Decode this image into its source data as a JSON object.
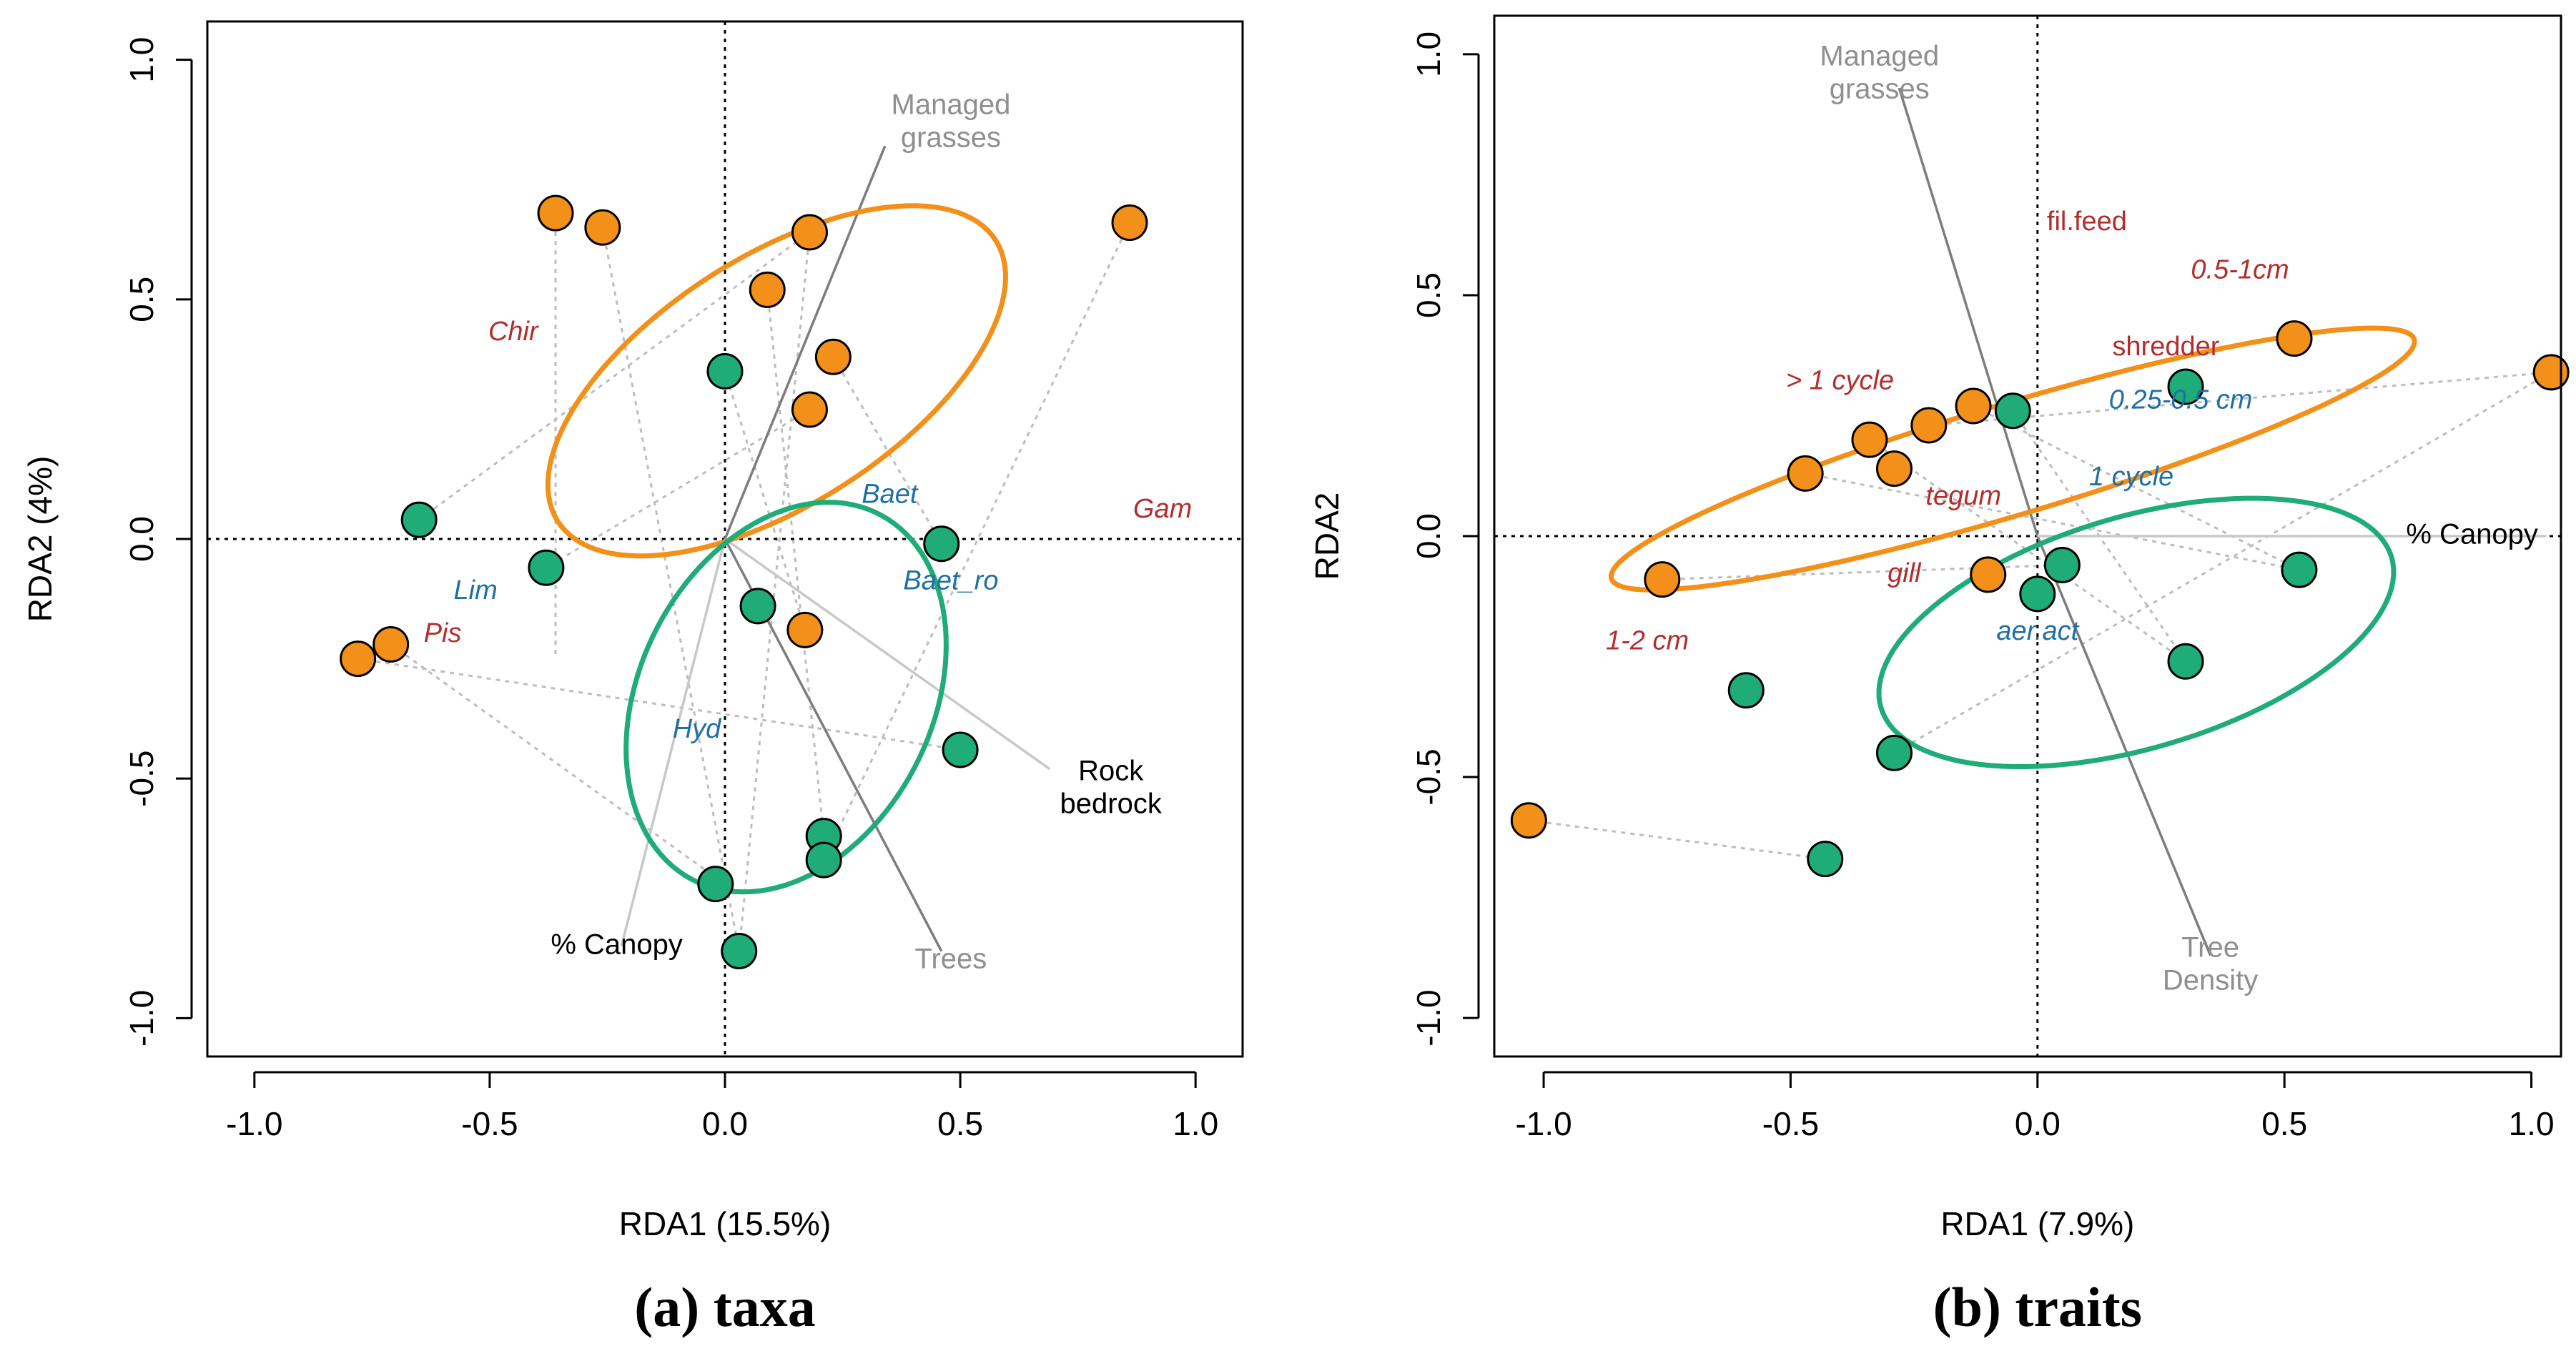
{
  "colors": {
    "orange": "#f39019",
    "green": "#1fac78",
    "taxon_red": "#b32d2d",
    "taxon_blue": "#1f6fa6",
    "gray": "#8f8f8f",
    "light": "#c4c4c4",
    "black": "#000000"
  },
  "chart_data": [
    {
      "type": "scatter",
      "panel": "(a) taxa",
      "caption": "(a) taxa",
      "xlabel": "RDA1 (15.5%)",
      "ylabel": "RDA2 (4%)",
      "xlim": [
        -1.1,
        1.1
      ],
      "ylim": [
        -1.08,
        1.08
      ],
      "xticks": [
        -1.0,
        -0.5,
        0.0,
        0.5,
        1.0
      ],
      "yticks": [
        -1.0,
        -0.5,
        0.0,
        0.5,
        1.0
      ],
      "xtick_labels": [
        "-1.0",
        "-0.5",
        "0.0",
        "0.5",
        "1.0"
      ],
      "ytick_labels": [
        "-1.0",
        "-0.5",
        "0.0",
        "0.5",
        "1.0"
      ],
      "series": [
        {
          "name": "orange sites",
          "color": "orange",
          "points": [
            [
              -0.36,
              0.68
            ],
            [
              -0.26,
              0.65
            ],
            [
              0.18,
              0.64
            ],
            [
              0.09,
              0.52
            ],
            [
              0.23,
              0.38
            ],
            [
              0.18,
              0.27
            ],
            [
              0.86,
              0.66
            ],
            [
              -0.78,
              -0.25
            ],
            [
              -0.71,
              -0.22
            ],
            [
              0.17,
              -0.19
            ]
          ]
        },
        {
          "name": "green sites",
          "color": "green",
          "points": [
            [
              -0.65,
              0.04
            ],
            [
              -0.38,
              -0.06
            ],
            [
              0.0,
              0.35
            ],
            [
              0.46,
              -0.01
            ],
            [
              0.07,
              -0.14
            ],
            [
              0.5,
              -0.44
            ],
            [
              0.21,
              -0.62
            ],
            [
              0.21,
              -0.67
            ],
            [
              -0.02,
              -0.72
            ],
            [
              0.03,
              -0.86
            ]
          ]
        }
      ],
      "ellipses": [
        {
          "color": "orange",
          "center": [
            0.11,
            0.33
          ],
          "semi_axes": [
            0.55,
            0.26
          ],
          "angle_deg": 32
        },
        {
          "color": "green",
          "center": [
            0.13,
            -0.33
          ],
          "semi_axes": [
            0.43,
            0.31
          ],
          "angle_deg": 62
        }
      ],
      "spider_lines": [
        [
          [
            -0.36,
            0.68
          ],
          [
            -0.36,
            -0.24
          ]
        ],
        [
          [
            -0.26,
            0.65
          ],
          [
            0.03,
            -0.86
          ]
        ],
        [
          [
            -0.65,
            0.04
          ],
          [
            0.18,
            0.64
          ]
        ],
        [
          [
            -0.78,
            -0.25
          ],
          [
            0.5,
            -0.44
          ]
        ],
        [
          [
            -0.71,
            -0.22
          ],
          [
            0.0,
            -0.72
          ]
        ],
        [
          [
            0.86,
            0.66
          ],
          [
            0.21,
            -0.67
          ]
        ],
        [
          [
            0.09,
            0.52
          ],
          [
            0.21,
            -0.62
          ]
        ],
        [
          [
            0.23,
            0.38
          ],
          [
            0.46,
            -0.01
          ]
        ],
        [
          [
            0.18,
            0.64
          ],
          [
            0.03,
            -0.86
          ]
        ],
        [
          [
            0.18,
            0.27
          ],
          [
            -0.38,
            -0.06
          ]
        ],
        [
          [
            0.17,
            -0.19
          ],
          [
            0.0,
            0.35
          ]
        ]
      ],
      "vectors": [
        {
          "label": "Managed grasses",
          "end": [
            0.34,
            0.82
          ],
          "color": "gray",
          "label_at": [
            0.48,
            0.86
          ]
        },
        {
          "label": "Trees",
          "end": [
            0.46,
            -0.86
          ],
          "color": "gray",
          "label_at": [
            0.48,
            -0.88
          ]
        },
        {
          "label": "% Canopy",
          "end": [
            -0.22,
            -0.85
          ],
          "color": "light",
          "label_at": [
            -0.23,
            -0.85
          ]
        },
        {
          "label": "Rock bedrock",
          "end": [
            0.69,
            -0.48
          ],
          "color": "light",
          "label_at": [
            0.82,
            -0.53
          ]
        }
      ],
      "taxa_labels": [
        {
          "text": "Chir",
          "at": [
            -0.45,
            0.43
          ],
          "color": "taxon_red"
        },
        {
          "text": "Gam",
          "at": [
            0.93,
            0.06
          ],
          "color": "taxon_red"
        },
        {
          "text": "Pis",
          "at": [
            -0.6,
            -0.2
          ],
          "color": "taxon_red"
        },
        {
          "text": "Baet",
          "at": [
            0.35,
            0.09
          ],
          "color": "taxon_blue"
        },
        {
          "text": "Baet_ro",
          "at": [
            0.48,
            -0.09
          ],
          "color": "taxon_blue"
        },
        {
          "text": "Lim",
          "at": [
            -0.53,
            -0.11
          ],
          "color": "taxon_blue"
        },
        {
          "text": "Hyd",
          "at": [
            -0.06,
            -0.4
          ],
          "color": "taxon_blue"
        }
      ]
    },
    {
      "type": "scatter",
      "panel": "(b) traits",
      "caption": "(b) traits",
      "xlabel": "RDA1 (7.9%)",
      "ylabel": "RDA2",
      "xlim": [
        -1.1,
        1.06
      ],
      "ylim": [
        -1.08,
        1.08
      ],
      "xticks": [
        -1.0,
        -0.5,
        0.0,
        0.5,
        1.0
      ],
      "yticks": [
        -1.0,
        -0.5,
        0.0,
        0.5,
        1.0
      ],
      "xtick_labels": [
        "-1.0",
        "-0.5",
        "0.0",
        "0.5",
        "1.0"
      ],
      "ytick_labels": [
        "-1.0",
        "-0.5",
        "0.0",
        "0.5",
        "1.0"
      ],
      "series": [
        {
          "name": "orange sites",
          "color": "orange",
          "points": [
            [
              0.52,
              0.41
            ],
            [
              -0.13,
              0.27
            ],
            [
              -0.22,
              0.23
            ],
            [
              -0.34,
              0.2
            ],
            [
              -0.29,
              0.14
            ],
            [
              -0.47,
              0.13
            ],
            [
              -0.76,
              -0.09
            ],
            [
              -0.1,
              -0.08
            ],
            [
              1.04,
              0.34
            ],
            [
              -1.03,
              -0.59
            ]
          ]
        },
        {
          "name": "green sites",
          "color": "green",
          "points": [
            [
              0.3,
              0.31
            ],
            [
              -0.05,
              0.26
            ],
            [
              0.53,
              -0.07
            ],
            [
              0.05,
              -0.06
            ],
            [
              0.0,
              -0.12
            ],
            [
              -0.59,
              -0.32
            ],
            [
              0.3,
              -0.26
            ],
            [
              -0.29,
              -0.45
            ],
            [
              -0.43,
              -0.67
            ]
          ]
        }
      ],
      "ellipses": [
        {
          "color": "orange",
          "center": [
            -0.05,
            0.16
          ],
          "semi_axes": [
            0.85,
            0.115
          ],
          "angle_deg": 17
        },
        {
          "color": "green",
          "center": [
            0.2,
            -0.2
          ],
          "semi_axes": [
            0.54,
            0.24
          ],
          "angle_deg": 17
        }
      ],
      "spider_lines": [
        [
          [
            1.04,
            0.34
          ],
          [
            -0.29,
            -0.45
          ]
        ],
        [
          [
            -1.03,
            -0.59
          ],
          [
            -0.43,
            -0.67
          ]
        ],
        [
          [
            -0.76,
            -0.09
          ],
          [
            0.05,
            -0.06
          ]
        ],
        [
          [
            -0.47,
            0.13
          ],
          [
            0.53,
            -0.07
          ]
        ],
        [
          [
            -0.34,
            0.2
          ],
          [
            0.3,
            -0.26
          ]
        ],
        [
          [
            -0.22,
            0.23
          ],
          [
            1.04,
            0.34
          ]
        ],
        [
          [
            -0.13,
            0.27
          ],
          [
            0.53,
            -0.07
          ]
        ],
        [
          [
            -0.05,
            0.26
          ],
          [
            0.3,
            -0.26
          ]
        ]
      ],
      "vectors": [
        {
          "label": "Managed grasses",
          "end": [
            -0.28,
            0.93
          ],
          "color": "gray",
          "label_at": [
            -0.32,
            0.95
          ]
        },
        {
          "label": "Tree Density",
          "end": [
            0.35,
            -0.87
          ],
          "color": "gray",
          "label_at": [
            0.35,
            -0.9
          ]
        },
        {
          "label": "% Canopy",
          "end": [
            1.03,
            0.0
          ],
          "color": "light",
          "label_at": [
            0.88,
            0.0
          ]
        }
      ],
      "trait_labels": [
        {
          "text": "fil.feed",
          "at": [
            0.1,
            0.65
          ],
          "color": "taxon_red",
          "italic": false
        },
        {
          "text": "0.5-1cm",
          "at": [
            0.41,
            0.55
          ],
          "color": "taxon_red",
          "italic": true
        },
        {
          "text": "shredder",
          "at": [
            0.26,
            0.39
          ],
          "color": "taxon_red",
          "italic": false
        },
        {
          "text": "> 1 cycle",
          "at": [
            -0.4,
            0.32
          ],
          "color": "taxon_red",
          "italic": true
        },
        {
          "text": "0.25-0.5 cm",
          "at": [
            0.29,
            0.28
          ],
          "color": "taxon_blue",
          "italic": true
        },
        {
          "text": "1 cycle",
          "at": [
            0.19,
            0.12
          ],
          "color": "taxon_blue",
          "italic": true
        },
        {
          "text": "tegum",
          "at": [
            -0.15,
            0.08
          ],
          "color": "taxon_red",
          "italic": true
        },
        {
          "text": "gill",
          "at": [
            -0.27,
            -0.08
          ],
          "color": "taxon_red",
          "italic": true
        },
        {
          "text": "1-2 cm",
          "at": [
            -0.79,
            -0.22
          ],
          "color": "taxon_red",
          "italic": true
        },
        {
          "text": "aer.act",
          "at": [
            0.0,
            -0.2
          ],
          "color": "taxon_blue",
          "italic": true
        }
      ]
    }
  ]
}
